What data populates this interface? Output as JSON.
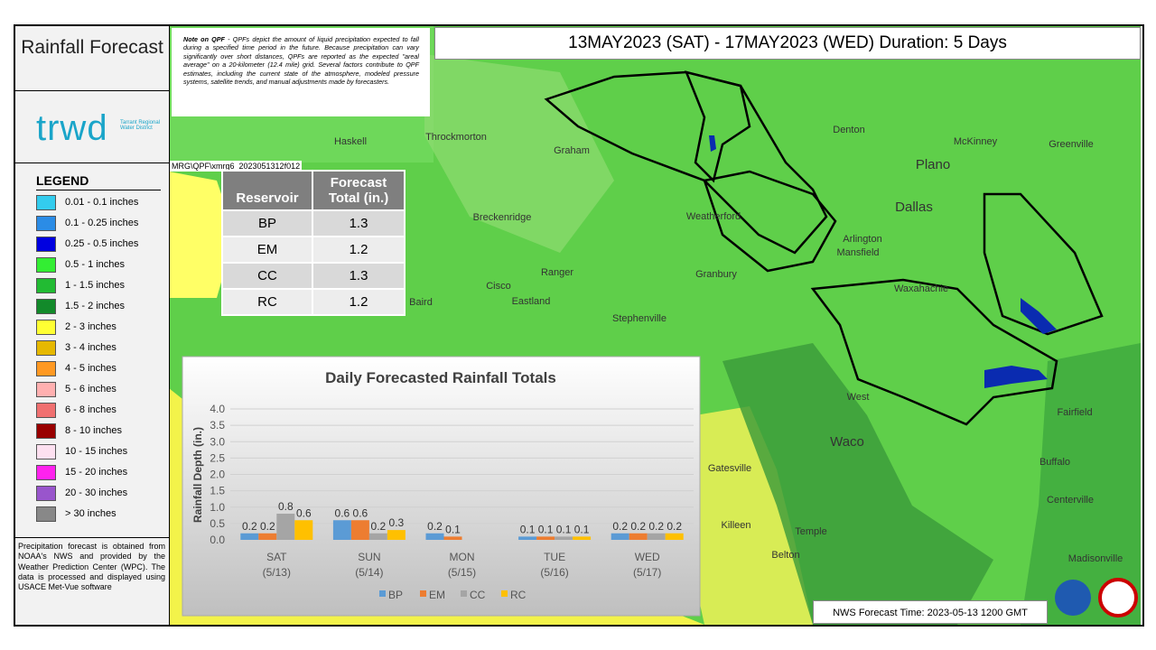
{
  "sidebar": {
    "title": "Rainfall Forecast",
    "logo": "trwd",
    "logo_subtitle": "Tarrant Regional Water District",
    "legend_title": "LEGEND",
    "legend": [
      {
        "label": "0.01 - 0.1 inches",
        "color": "#33ccee"
      },
      {
        "label": "0.1 - 0.25 inches",
        "color": "#2b8ce6"
      },
      {
        "label": "0.25 - 0.5 inches",
        "color": "#0000e0"
      },
      {
        "label": "0.5 - 1 inches",
        "color": "#33ee33"
      },
      {
        "label": "1 - 1.5 inches",
        "color": "#22bb33"
      },
      {
        "label": "1.5 - 2 inches",
        "color": "#128a2a"
      },
      {
        "label": "2 - 3 inches",
        "color": "#ffff33"
      },
      {
        "label": "3 - 4 inches",
        "color": "#e6b800"
      },
      {
        "label": "4 - 5 inches",
        "color": "#ff9922"
      },
      {
        "label": "5 - 6 inches",
        "color": "#ffb0b0"
      },
      {
        "label": "6 - 8 inches",
        "color": "#f07070"
      },
      {
        "label": "8 - 10 inches",
        "color": "#990000"
      },
      {
        "label": "10 - 15 inches",
        "color": "#fde0f0"
      },
      {
        "label": "15 - 20 inches",
        "color": "#ff22ee"
      },
      {
        "label": "20 - 30 inches",
        "color": "#9955cc"
      },
      {
        "label": "> 30 inches",
        "color": "#888888"
      }
    ],
    "footnote": "Precipitation forecast is obtained from NOAA's NWS and provided by the Weather Prediction Center (WPC). The data is processed and displayed using USACE Met-Vue software"
  },
  "note": {
    "lead": "Note on QPF",
    "text": "- QPFs depict the amount of liquid precipitation expected to fall during a specified time period in the future. Because precipitation can vary significantly over short distances, QPFs are reported as the expected \"areal average\" on a 20-kilometer (12.4 mile) grid. Several factors contribute to QPF estimates, including the current state of the atmosphere, modeled pressure systems, satellite trends, and manual adjustments made by forecasters."
  },
  "header": {
    "title": "13MAY2023 (SAT) - 17MAY2023 (WED) Duration: 5 Days"
  },
  "map": {
    "file_path": "MRG\\QPF\\xmrg6_2023051312f012",
    "places": [
      "Haskell",
      "Throckmorton",
      "Graham",
      "Denton",
      "McKinney",
      "Greenville",
      "Plano",
      "Dallas",
      "Weatherford",
      "Breckenridge",
      "Arlington",
      "Mansfield",
      "Ranger",
      "Cisco",
      "Eastland",
      "Baird",
      "Granbury",
      "Waxahachie",
      "Stephenville",
      "West",
      "Waco",
      "Fairfield",
      "Gatesville",
      "Buffalo",
      "Centerville",
      "Killeen",
      "Temple",
      "Belton",
      "Madisonville"
    ]
  },
  "table": {
    "header": [
      "Reservoir",
      "Forecast Total (in.)"
    ],
    "rows": [
      [
        "BP",
        "1.3"
      ],
      [
        "EM",
        "1.2"
      ],
      [
        "CC",
        "1.3"
      ],
      [
        "RC",
        "1.2"
      ]
    ]
  },
  "chart_data": {
    "type": "bar",
    "title": "Daily Forecasted Rainfall Totals",
    "y_label": "Rainfall Depth (in.)",
    "categories": [
      "SAT (5/13)",
      "SUN (5/14)",
      "MON (5/15)",
      "TUE (5/16)",
      "WED (5/17)"
    ],
    "series": [
      {
        "name": "BP",
        "color": "#5b9bd5",
        "values": [
          0.2,
          0.6,
          0.2,
          0.1,
          0.2
        ]
      },
      {
        "name": "EM",
        "color": "#ed7d31",
        "values": [
          0.2,
          0.6,
          0.1,
          0.1,
          0.2
        ]
      },
      {
        "name": "CC",
        "color": "#a5a5a5",
        "values": [
          0.8,
          0.2,
          null,
          0.1,
          0.2
        ]
      },
      {
        "name": "RC",
        "color": "#ffc000",
        "values": [
          0.6,
          0.3,
          null,
          0.1,
          0.2
        ]
      }
    ],
    "ylim": [
      0,
      4
    ],
    "yticks": [
      {
        "value": 0,
        "label": "0.0"
      },
      0.5,
      {
        "value": 1,
        "label": "1.0"
      },
      1.5,
      {
        "value": 2,
        "label": "2.0"
      },
      2.5,
      {
        "value": 3,
        "label": "3.0"
      },
      3.5,
      {
        "value": 4,
        "label": "4.0"
      }
    ],
    "grid": true
  },
  "footer": {
    "forecast_time": "NWS Forecast Time: 2023-05-13 1200 GMT"
  }
}
